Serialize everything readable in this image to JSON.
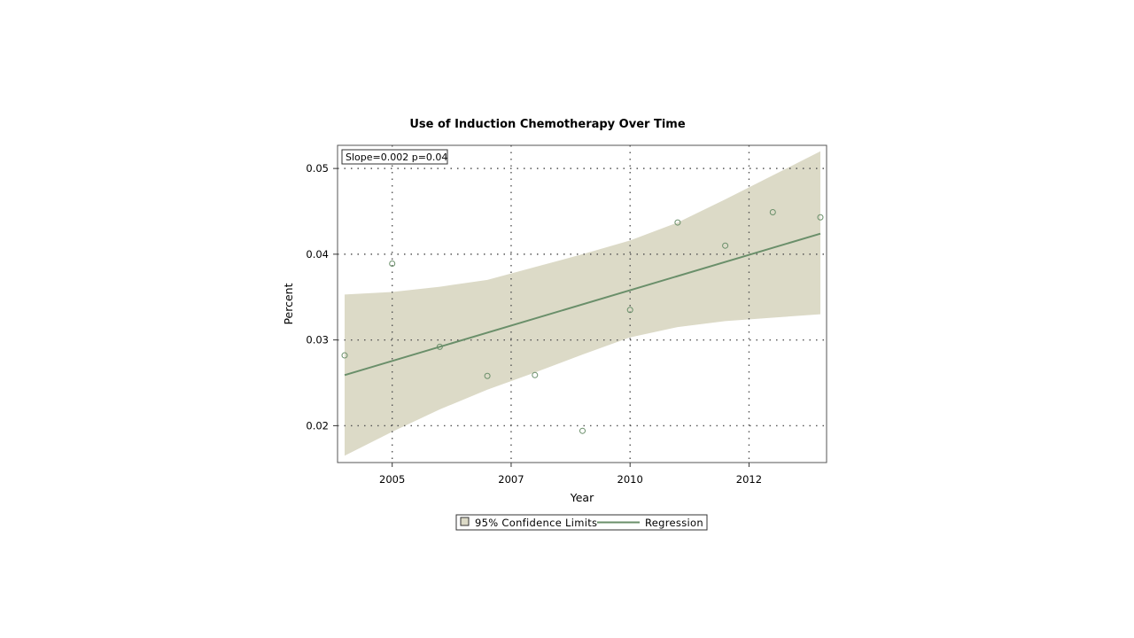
{
  "chart_data": {
    "type": "scatter",
    "title": "Use of Induction Chemotherapy Over Time",
    "xlabel": "Year",
    "ylabel": "Percent",
    "annotation": "Slope=0.002 p=0.04",
    "x_tick_labels": [
      "2005",
      "2007",
      "2010",
      "2012"
    ],
    "y_ticks": [
      0.02,
      0.03,
      0.04,
      0.05
    ],
    "y_tick_labels": [
      "0.02",
      "0.03",
      "0.04",
      "0.05"
    ],
    "ylim": [
      0.0157,
      0.0527
    ],
    "grid": true,
    "legend_position": "bottom-center",
    "legend": [
      {
        "label": "95% Confidence Limits",
        "kind": "band"
      },
      {
        "label": "Regression",
        "kind": "line"
      }
    ],
    "colors": {
      "band": "#dcdac7",
      "line": "#6a8f6a",
      "marker": "#6a8f6a",
      "grid": "#555555"
    },
    "points": [
      {
        "x": 1,
        "y": 0.0282
      },
      {
        "x": 2,
        "y": 0.0389
      },
      {
        "x": 3,
        "y": 0.0292
      },
      {
        "x": 4,
        "y": 0.0258
      },
      {
        "x": 5,
        "y": 0.0259
      },
      {
        "x": 6,
        "y": 0.0194
      },
      {
        "x": 7,
        "y": 0.0335
      },
      {
        "x": 8,
        "y": 0.0437
      },
      {
        "x": 9,
        "y": 0.041
      },
      {
        "x": 10,
        "y": 0.0449
      },
      {
        "x": 11,
        "y": 0.0443
      }
    ],
    "regression": {
      "x": [
        1,
        11
      ],
      "y": [
        0.0259,
        0.0424
      ]
    },
    "confidence_band": {
      "x": [
        1,
        2,
        3,
        4,
        5,
        6,
        7,
        8,
        9,
        10,
        11
      ],
      "lower": [
        0.0165,
        0.0193,
        0.0219,
        0.0242,
        0.0262,
        0.0283,
        0.0303,
        0.0315,
        0.0322,
        0.0326,
        0.033
      ],
      "upper": [
        0.0353,
        0.0356,
        0.0362,
        0.037,
        0.0385,
        0.04,
        0.0416,
        0.0437,
        0.0464,
        0.0492,
        0.052
      ]
    },
    "x_ticks": [
      2,
      4.5,
      7,
      9.5
    ]
  }
}
